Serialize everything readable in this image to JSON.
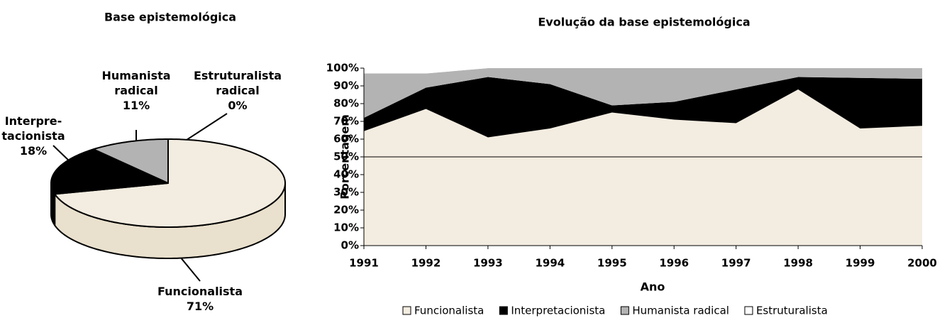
{
  "chart_data": [
    {
      "type": "pie3d",
      "title": "Base epistemológica",
      "categories": [
        "Funcionalista",
        "Interpre-\ntacionista",
        "Humanista\nradical",
        "Estruturalista\nradical"
      ],
      "values": [
        71,
        18,
        11,
        0
      ],
      "value_labels": [
        "71%",
        "18%",
        "11%",
        "0%"
      ],
      "colors": [
        "#f3ece0",
        "#000000",
        "#b3b3b3",
        "#ffffff"
      ]
    },
    {
      "type": "stacked_area",
      "title": "Evolução da base epistemológica",
      "x_label": "Ano",
      "y_label": "Porcentagem",
      "categories": [
        "1991",
        "1992",
        "1993",
        "1994",
        "1995",
        "1996",
        "1997",
        "1998",
        "1999",
        "2000"
      ],
      "series": [
        {
          "name": "Funcionalista",
          "color": "#f3ece0",
          "values": [
            64.5,
            77,
            61,
            66,
            75,
            71,
            69,
            88,
            66,
            67.5
          ]
        },
        {
          "name": "Interpretacionista",
          "color": "#000000",
          "values": [
            7.5,
            12,
            34,
            25,
            4,
            10,
            19,
            7,
            28.5,
            26.5
          ]
        },
        {
          "name": "Humanista radical",
          "color": "#b3b3b3",
          "values": [
            25,
            8,
            5,
            9,
            21,
            19,
            12,
            5,
            5.5,
            6
          ]
        },
        {
          "name": "Estruturalista",
          "color": "#ffffff",
          "values": [
            3,
            3,
            0,
            0,
            0,
            0,
            0,
            0,
            0,
            0
          ]
        }
      ],
      "ylim": [
        0,
        100
      ],
      "yticks": [
        {
          "value": 0,
          "label": "0%"
        },
        {
          "value": 10,
          "label": "10%"
        },
        {
          "value": 20,
          "label": "20%"
        },
        {
          "value": 30,
          "label": "30%"
        },
        {
          "value": 40,
          "label": "40%"
        },
        {
          "value": 50,
          "label": "50%"
        },
        {
          "value": 60,
          "label": "60%"
        },
        {
          "value": 70,
          "label": "70%"
        },
        {
          "value": 80,
          "label": "80%"
        },
        {
          "value": 90,
          "label": "90%"
        },
        {
          "value": 100,
          "label": "100%"
        }
      ],
      "hline": 50,
      "legend": "bottom"
    }
  ]
}
